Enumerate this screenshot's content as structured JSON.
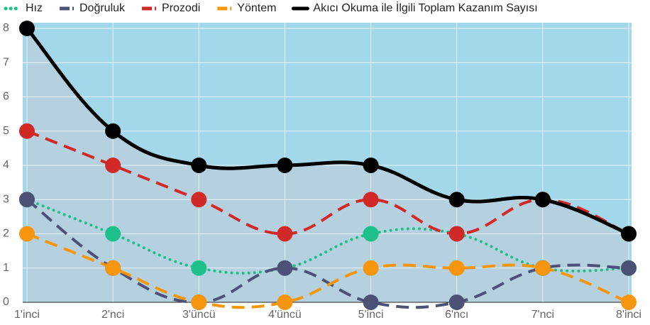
{
  "chart_data": {
    "type": "line",
    "categories": [
      "1'inci",
      "2'nci",
      "3'üncü",
      "4'üncü",
      "5'inci",
      "6'ncı",
      "7'nci",
      "8'inci"
    ],
    "series": [
      {
        "name": "Hız",
        "color": "#1dbf8a",
        "dash": "dotted",
        "values": [
          3,
          2,
          1,
          1,
          2,
          2,
          1,
          1
        ]
      },
      {
        "name": "Doğruluk",
        "color": "#4b5276",
        "dash": "dashed",
        "values": [
          3,
          1,
          0,
          1,
          0,
          0,
          1,
          1
        ]
      },
      {
        "name": "Prozodi",
        "color": "#d12828",
        "dash": "dashed",
        "values": [
          5,
          4,
          3,
          2,
          3,
          2,
          3,
          2
        ]
      },
      {
        "name": "Yöntem",
        "color": "#f5960e",
        "dash": "dashed",
        "values": [
          2,
          1,
          0,
          0,
          1,
          1,
          1,
          0
        ]
      },
      {
        "name": "Akıcı Okuma ile İlgili Toplam Kazanım Sayısı",
        "color": "#000000",
        "dash": "solid",
        "values": [
          8,
          5,
          4,
          4,
          4,
          3,
          3,
          2
        ]
      }
    ],
    "ylim": [
      0,
      8
    ],
    "yticks": [
      0,
      1,
      2,
      3,
      4,
      5,
      6,
      7,
      8
    ],
    "grid": true
  }
}
